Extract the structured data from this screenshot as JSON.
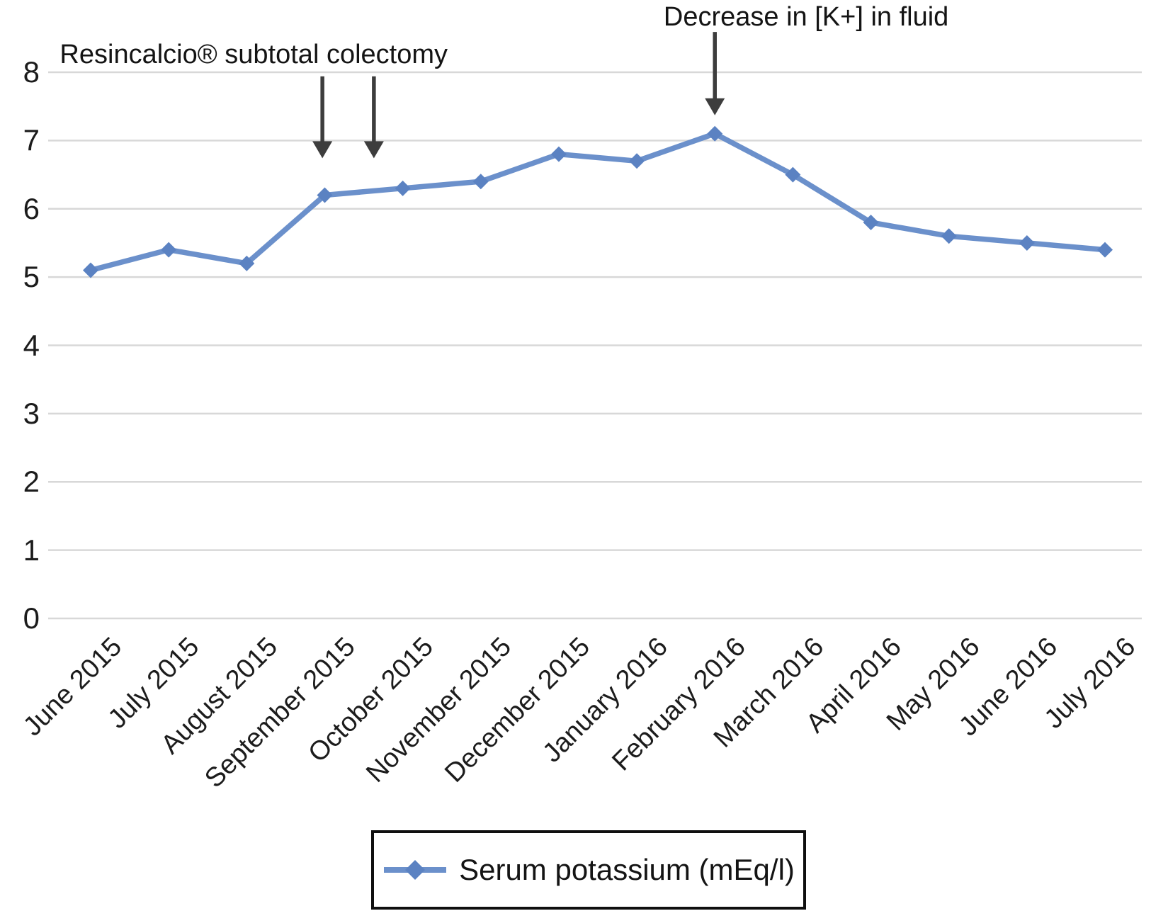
{
  "chart_data": {
    "type": "line",
    "x": [
      "June 2015",
      "July 2015",
      "August 2015",
      "September 2015",
      "October 2015",
      "November 2015",
      "December 2015",
      "January 2016",
      "February 2016",
      "March 2016",
      "April 2016",
      "May 2016",
      "June 2016",
      "July 2016"
    ],
    "series": [
      {
        "name": "Serum potassium (mEq/l)",
        "values": [
          5.1,
          5.4,
          5.2,
          6.2,
          6.3,
          6.4,
          6.8,
          6.7,
          7.1,
          6.5,
          5.8,
          5.6,
          5.5,
          5.4
        ]
      }
    ],
    "title": "",
    "xlabel": "",
    "ylabel": "",
    "ylim": [
      0,
      8
    ],
    "ytick_step": 1,
    "yticks": [
      0,
      1,
      2,
      3,
      4,
      5,
      6,
      7,
      8
    ],
    "grid": true,
    "legend_position": "bottom-center",
    "annotations": [
      {
        "label": "Resincalcio® subtotal colectomy",
        "label_x_index": 2.09,
        "label_value": 8.48,
        "arrow_x_indices": [
          2.97,
          3.63
        ],
        "arrow_from_value": 7.94,
        "arrow_to_value": 6.74
      },
      {
        "label": "Decrease in [K+] in fluid",
        "label_x_index": 9.17,
        "label_value": 9.03,
        "arrow_x_indices": [
          8.0
        ],
        "arrow_from_value": 8.59,
        "arrow_to_value": 7.37
      }
    ]
  },
  "legend": {
    "label": "Serum potassium (mEq/l)"
  },
  "colors": {
    "line": "#6b90cb",
    "marker": "#5b82c2",
    "gridline": "#d8d8d8",
    "arrow": "#3d3d3d",
    "text": "#1c1c1c",
    "legend_border": "#0f0f0f"
  }
}
